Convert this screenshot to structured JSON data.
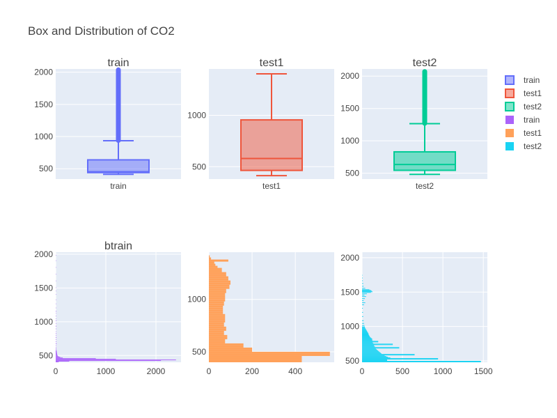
{
  "chart_data": {
    "title": "Box and Distribution of CO2",
    "colors": {
      "train": "#636efa",
      "test1": "#ef553b",
      "test2": "#00cc96",
      "btrain": "#ab63fa",
      "htest1": "#ffa15a",
      "htest2": "#19d3f3"
    },
    "legend": {
      "placement": "top-right",
      "entries": [
        {
          "label": "train",
          "kind": "box",
          "color_key": "train"
        },
        {
          "label": "test1",
          "kind": "box",
          "color_key": "test1"
        },
        {
          "label": "test2",
          "kind": "box",
          "color_key": "test2"
        },
        {
          "label": "train",
          "kind": "bar",
          "color_key": "btrain"
        },
        {
          "label": "test1",
          "kind": "bar",
          "color_key": "htest1"
        },
        {
          "label": "test2",
          "kind": "bar",
          "color_key": "htest2"
        }
      ]
    },
    "boxes": [
      {
        "id": "train",
        "subtitle": "train",
        "category": "train",
        "color_key": "train",
        "ylim": [
          340,
          2050
        ],
        "yticks": [
          500,
          1000,
          1500,
          2000
        ],
        "min": 413,
        "q1": 440,
        "median": 453,
        "q3": 638,
        "max": 935,
        "outliers_from": 940,
        "outliers_to": 2040
      },
      {
        "id": "test1",
        "subtitle": "test1",
        "category": "test1",
        "color_key": "test1",
        "ylim": [
          380,
          1450
        ],
        "yticks": [
          500,
          1000
        ],
        "min": 413,
        "q1": 464,
        "median": 580,
        "q3": 955,
        "max": 1403,
        "outliers_from": null,
        "outliers_to": null
      },
      {
        "id": "test2",
        "subtitle": "test2",
        "category": "test2",
        "color_key": "test2",
        "ylim": [
          410,
          2110
        ],
        "yticks": [
          500,
          1000,
          1500,
          2000
        ],
        "min": 483,
        "q1": 545,
        "median": 635,
        "q3": 830,
        "max": 1265,
        "outliers_from": 1270,
        "outliers_to": 2070
      }
    ],
    "histograms": [
      {
        "id": "btrain",
        "subtitle": "btrain",
        "color_key": "btrain",
        "ylim": [
          400,
          2030
        ],
        "yticks": [
          500,
          1000,
          1500,
          2000
        ],
        "xlim": [
          0,
          2500
        ],
        "xticks": [
          0,
          1000,
          2000
        ],
        "bin_size": 10,
        "bins": [
          [
            405,
            60
          ],
          [
            415,
            270
          ],
          [
            425,
            2100
          ],
          [
            435,
            2400
          ],
          [
            445,
            1200
          ],
          [
            455,
            800
          ],
          [
            465,
            140
          ],
          [
            475,
            90
          ],
          [
            485,
            60
          ],
          [
            495,
            40
          ],
          [
            505,
            35
          ],
          [
            515,
            30
          ],
          [
            525,
            28
          ],
          [
            535,
            25
          ],
          [
            545,
            22
          ],
          [
            555,
            20
          ],
          [
            565,
            18
          ],
          [
            575,
            16
          ],
          [
            595,
            14
          ],
          [
            615,
            12
          ],
          [
            645,
            10
          ],
          [
            675,
            18
          ],
          [
            705,
            12
          ],
          [
            735,
            10
          ],
          [
            765,
            14
          ],
          [
            795,
            10
          ],
          [
            825,
            12
          ],
          [
            855,
            8
          ],
          [
            895,
            10
          ],
          [
            935,
            14
          ],
          [
            975,
            10
          ],
          [
            1015,
            12
          ],
          [
            1045,
            8
          ],
          [
            1085,
            10
          ],
          [
            1125,
            6
          ],
          [
            1155,
            12
          ],
          [
            1205,
            5
          ],
          [
            1265,
            4
          ],
          [
            1325,
            3
          ],
          [
            1405,
            5
          ],
          [
            1455,
            4
          ],
          [
            1505,
            4
          ],
          [
            1605,
            2
          ],
          [
            1705,
            3
          ],
          [
            1805,
            2
          ],
          [
            1905,
            2
          ],
          [
            1985,
            3
          ]
        ]
      },
      {
        "id": "htest1",
        "subtitle": "",
        "color_key": "htest1",
        "ylim": [
          400,
          1450
        ],
        "yticks": [
          500,
          1000
        ],
        "xlim": [
          0,
          580
        ],
        "xticks": [
          0,
          200,
          400
        ],
        "bin_size": 20,
        "bins": [
          [
            410,
            430
          ],
          [
            430,
            430
          ],
          [
            450,
            430
          ],
          [
            470,
            560
          ],
          [
            490,
            560
          ],
          [
            510,
            200
          ],
          [
            530,
            200
          ],
          [
            550,
            160
          ],
          [
            570,
            160
          ],
          [
            590,
            75
          ],
          [
            610,
            75
          ],
          [
            630,
            85
          ],
          [
            650,
            85
          ],
          [
            670,
            70
          ],
          [
            690,
            70
          ],
          [
            710,
            80
          ],
          [
            730,
            80
          ],
          [
            750,
            70
          ],
          [
            770,
            70
          ],
          [
            790,
            75
          ],
          [
            810,
            75
          ],
          [
            830,
            75
          ],
          [
            850,
            75
          ],
          [
            870,
            65
          ],
          [
            890,
            65
          ],
          [
            910,
            65
          ],
          [
            930,
            65
          ],
          [
            950,
            70
          ],
          [
            970,
            70
          ],
          [
            990,
            75
          ],
          [
            1010,
            75
          ],
          [
            1030,
            75
          ],
          [
            1050,
            75
          ],
          [
            1070,
            80
          ],
          [
            1090,
            80
          ],
          [
            1110,
            95
          ],
          [
            1130,
            95
          ],
          [
            1150,
            100
          ],
          [
            1170,
            100
          ],
          [
            1190,
            90
          ],
          [
            1210,
            90
          ],
          [
            1230,
            80
          ],
          [
            1250,
            80
          ],
          [
            1270,
            60
          ],
          [
            1290,
            60
          ],
          [
            1310,
            40
          ],
          [
            1330,
            30
          ],
          [
            1350,
            25
          ],
          [
            1370,
            90
          ],
          [
            1390,
            10
          ],
          [
            1410,
            4
          ]
        ]
      },
      {
        "id": "htest2",
        "subtitle": "",
        "color_key": "htest2",
        "ylim": [
          480,
          2080
        ],
        "yticks": [
          500,
          1000,
          1500,
          2000
        ],
        "xlim": [
          0,
          1550
        ],
        "xticks": [
          0,
          500,
          1000,
          1500
        ],
        "bin_size": 10,
        "bins": [
          [
            485,
            1470
          ],
          [
            495,
            1470
          ],
          [
            505,
            310
          ],
          [
            515,
            310
          ],
          [
            525,
            940
          ],
          [
            535,
            940
          ],
          [
            545,
            350
          ],
          [
            555,
            320
          ],
          [
            565,
            300
          ],
          [
            575,
            280
          ],
          [
            585,
            650
          ],
          [
            595,
            650
          ],
          [
            605,
            240
          ],
          [
            615,
            230
          ],
          [
            625,
            220
          ],
          [
            635,
            210
          ],
          [
            645,
            200
          ],
          [
            655,
            190
          ],
          [
            665,
            180
          ],
          [
            675,
            170
          ],
          [
            685,
            460
          ],
          [
            695,
            460
          ],
          [
            705,
            160
          ],
          [
            715,
            150
          ],
          [
            725,
            150
          ],
          [
            735,
            380
          ],
          [
            745,
            380
          ],
          [
            755,
            140
          ],
          [
            765,
            130
          ],
          [
            775,
            200
          ],
          [
            785,
            200
          ],
          [
            795,
            130
          ],
          [
            805,
            120
          ],
          [
            815,
            130
          ],
          [
            825,
            120
          ],
          [
            835,
            110
          ],
          [
            845,
            100
          ],
          [
            855,
            95
          ],
          [
            865,
            90
          ],
          [
            875,
            85
          ],
          [
            885,
            80
          ],
          [
            895,
            80
          ],
          [
            905,
            75
          ],
          [
            915,
            70
          ],
          [
            925,
            65
          ],
          [
            935,
            60
          ],
          [
            945,
            55
          ],
          [
            955,
            50
          ],
          [
            965,
            45
          ],
          [
            975,
            40
          ],
          [
            985,
            35
          ],
          [
            995,
            35
          ],
          [
            1015,
            30
          ],
          [
            1045,
            25
          ],
          [
            1085,
            20
          ],
          [
            1145,
            15
          ],
          [
            1205,
            12
          ],
          [
            1265,
            10
          ],
          [
            1315,
            25
          ],
          [
            1345,
            40
          ],
          [
            1375,
            20
          ],
          [
            1405,
            35
          ],
          [
            1435,
            50
          ],
          [
            1455,
            30
          ],
          [
            1475,
            60
          ],
          [
            1495,
            110
          ],
          [
            1505,
            130
          ],
          [
            1515,
            120
          ],
          [
            1525,
            110
          ],
          [
            1535,
            90
          ],
          [
            1555,
            40
          ],
          [
            1585,
            20
          ],
          [
            1625,
            15
          ],
          [
            1665,
            10
          ],
          [
            1705,
            8
          ],
          [
            1745,
            5
          ]
        ]
      }
    ]
  }
}
